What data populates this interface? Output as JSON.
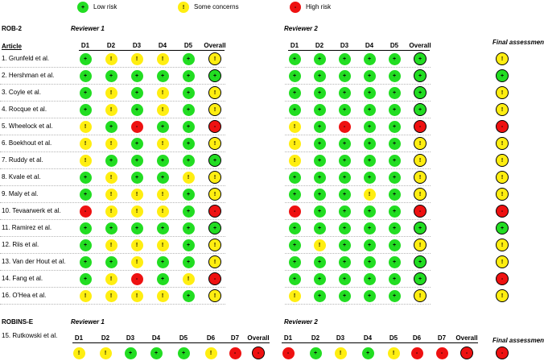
{
  "colors": {
    "low": "#22dd22",
    "some": "#ffee11",
    "high": "#ee1111"
  },
  "legend": [
    {
      "symbol": "+",
      "level": "low",
      "label": "Low risk"
    },
    {
      "symbol": "!",
      "level": "some",
      "label": "Some concerns"
    },
    {
      "symbol": "-",
      "level": "high",
      "label": "High risk"
    }
  ],
  "rob2": {
    "title": "ROB-2",
    "article_header": "Article",
    "reviewer1_label": "Reviewer 1",
    "reviewer2_label": "Reviewer 2",
    "final_label": "Final assessment",
    "domain_headers": [
      "D1",
      "D2",
      "D3",
      "D4",
      "D5",
      "Overall"
    ],
    "rows": [
      {
        "article": "1. Grunfeld et al.",
        "r1": [
          "L",
          "S",
          "S",
          "S",
          "L",
          "S"
        ],
        "r2": [
          "L",
          "L",
          "L",
          "L",
          "L",
          "L"
        ],
        "final": "S"
      },
      {
        "article": "2. Hershman et al.",
        "r1": [
          "L",
          "L",
          "L",
          "L",
          "L",
          "L"
        ],
        "r2": [
          "L",
          "L",
          "L",
          "L",
          "L",
          "L"
        ],
        "final": "L"
      },
      {
        "article": "3. Coyle et al.",
        "r1": [
          "L",
          "S",
          "L",
          "S",
          "L",
          "S"
        ],
        "r2": [
          "L",
          "L",
          "L",
          "L",
          "L",
          "L"
        ],
        "final": "S"
      },
      {
        "article": "4. Rocque et al.",
        "r1": [
          "L",
          "S",
          "L",
          "S",
          "L",
          "S"
        ],
        "r2": [
          "L",
          "L",
          "L",
          "L",
          "L",
          "L"
        ],
        "final": "S"
      },
      {
        "article": "5. Wheelock et al.",
        "r1": [
          "S",
          "L",
          "H",
          "L",
          "L",
          "H"
        ],
        "r2": [
          "S",
          "L",
          "H",
          "L",
          "L",
          "H"
        ],
        "final": "H"
      },
      {
        "article": "6. Boekhout et al.",
        "r1": [
          "S",
          "S",
          "L",
          "S",
          "L",
          "S"
        ],
        "r2": [
          "S",
          "L",
          "L",
          "L",
          "L",
          "S"
        ],
        "final": "S"
      },
      {
        "article": "7. Ruddy et al.",
        "r1": [
          "S",
          "L",
          "L",
          "L",
          "L",
          "L"
        ],
        "r2": [
          "S",
          "L",
          "L",
          "L",
          "L",
          "S"
        ],
        "final": "S"
      },
      {
        "article": "8. Kvale et al.",
        "r1": [
          "L",
          "S",
          "L",
          "L",
          "S",
          "S"
        ],
        "r2": [
          "L",
          "L",
          "L",
          "L",
          "L",
          "S"
        ],
        "final": "S"
      },
      {
        "article": "9. Maly et al.",
        "r1": [
          "L",
          "S",
          "S",
          "S",
          "L",
          "S"
        ],
        "r2": [
          "L",
          "L",
          "L",
          "S",
          "L",
          "S"
        ],
        "final": "S"
      },
      {
        "article": "10. Tevaarwerk et al.",
        "r1": [
          "H",
          "S",
          "S",
          "S",
          "L",
          "H"
        ],
        "r2": [
          "H",
          "L",
          "L",
          "L",
          "L",
          "H"
        ],
        "final": "H"
      },
      {
        "article": "11. Ramirez et al.",
        "r1": [
          "L",
          "L",
          "L",
          "L",
          "L",
          "L"
        ],
        "r2": [
          "L",
          "L",
          "L",
          "L",
          "L",
          "L"
        ],
        "final": "L"
      },
      {
        "article": "12. Riis et al.",
        "r1": [
          "L",
          "S",
          "S",
          "S",
          "L",
          "S"
        ],
        "r2": [
          "L",
          "S",
          "L",
          "L",
          "L",
          "S"
        ],
        "final": "S"
      },
      {
        "article": "13. Van der Hout et al.",
        "r1": [
          "L",
          "L",
          "S",
          "L",
          "L",
          "S"
        ],
        "r2": [
          "L",
          "L",
          "L",
          "L",
          "L",
          "L"
        ],
        "final": "S"
      },
      {
        "article": "14. Fang et al.",
        "r1": [
          "L",
          "S",
          "H",
          "L",
          "S",
          "H"
        ],
        "r2": [
          "L",
          "L",
          "L",
          "L",
          "L",
          "L"
        ],
        "final": "H"
      },
      {
        "article": "16. O'Hea et al.",
        "r1": [
          "S",
          "S",
          "S",
          "S",
          "L",
          "S"
        ],
        "r2": [
          "S",
          "L",
          "L",
          "L",
          "L",
          "S"
        ],
        "final": "S"
      }
    ]
  },
  "robinse": {
    "title": "ROBINS-E",
    "reviewer1_label": "Reviewer 1",
    "reviewer2_label": "Reviewer 2",
    "final_label": "Final assessment",
    "article": "15. Rutkowski et al.",
    "domain_headers": [
      "D1",
      "D2",
      "D3",
      "D4",
      "D5",
      "D6",
      "D7",
      "Overall"
    ],
    "r1": [
      "S",
      "S",
      "L",
      "L",
      "L",
      "S",
      "H",
      "H"
    ],
    "r2": [
      "H",
      "L",
      "S",
      "L",
      "S",
      "H",
      "H",
      "H"
    ],
    "final": "H"
  }
}
